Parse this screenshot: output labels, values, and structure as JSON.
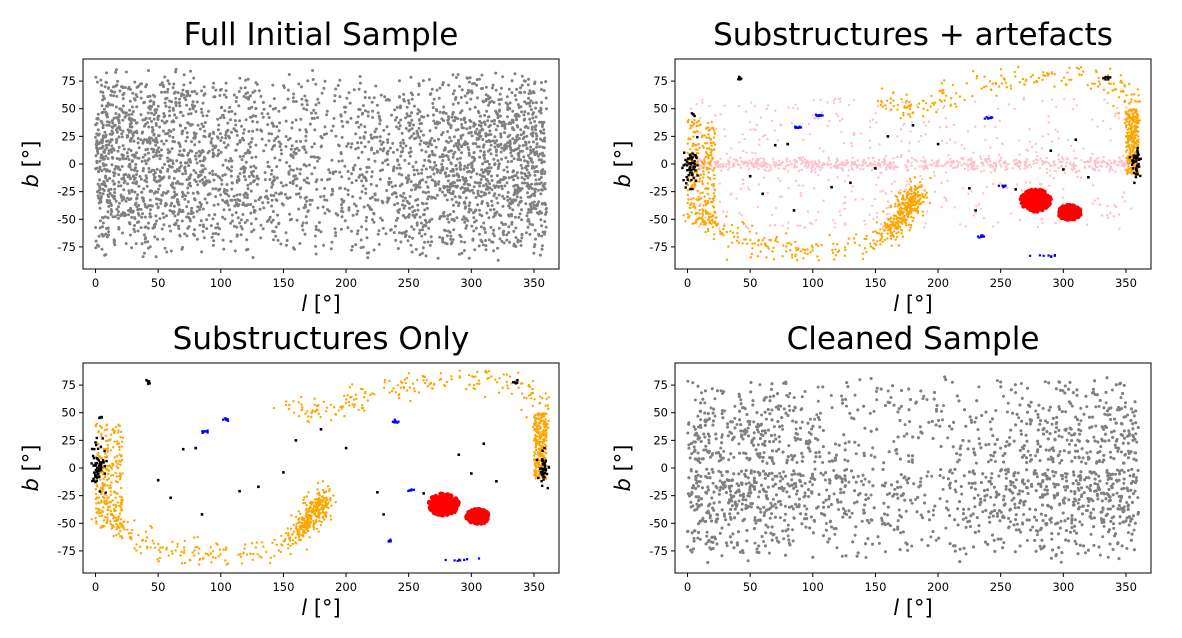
{
  "chart_data": [
    {
      "type": "scatter",
      "title": "Full Initial Sample",
      "xlabel": "l [°]",
      "ylabel": "b [°]",
      "xlim": [
        -10,
        370
      ],
      "ylim": [
        -95,
        95
      ],
      "xticks": [
        0,
        50,
        100,
        150,
        200,
        250,
        300,
        350
      ],
      "yticks": [
        -75,
        -50,
        -25,
        0,
        25,
        50,
        75
      ],
      "grid": false,
      "series": [
        {
          "color": "#808080",
          "points": "all-sky star sample; densest |b|>20 near l<110 and l>240, thinner toward l~150-230; thin underdense lane at b~0",
          "density": "very high"
        }
      ]
    },
    {
      "type": "scatter",
      "title": "Substructures + artefacts",
      "xlabel": "l [°]",
      "ylabel": "b [°]",
      "xlim": [
        -10,
        370
      ],
      "ylim": [
        -95,
        95
      ],
      "xticks": [
        0,
        50,
        100,
        150,
        200,
        250,
        300,
        350
      ],
      "yticks": [
        -75,
        -50,
        -25,
        0,
        25,
        50,
        75
      ],
      "grid": false,
      "series": [
        {
          "color": "#ffc0cb",
          "points": "pink band along b~0 and diffuse scatter"
        },
        {
          "color": "#ffa500",
          "points": "orange stream: l 0-20 (b -50..40), l 20-180 (b ~-60..-80 rising to -25 at l~175), l 150-210 (b 40..65), l 220-350 (b 65..80), l 350-360 (b 0..50)"
        },
        {
          "color": "#000000",
          "points": "black clumps near l~0-10, b~0 and l~355-360, b~0 plus scattered small clumps"
        },
        {
          "color": "#0000ff",
          "points": "small blue clumps at (88,33), (105,44), (240,42), (235,-66), (288,-83)"
        },
        {
          "color": "#ff0000",
          "points": "red blobs centred at l~278, b~-33 and l~305, b~-44"
        }
      ]
    },
    {
      "type": "scatter",
      "title": "Substructures Only",
      "xlabel": "l [°]",
      "ylabel": "b [°]",
      "xlim": [
        -10,
        370
      ],
      "ylim": [
        -95,
        95
      ],
      "xticks": [
        0,
        50,
        100,
        150,
        200,
        250,
        300,
        350
      ],
      "yticks": [
        -75,
        -50,
        -25,
        0,
        25,
        50,
        75
      ],
      "grid": false,
      "series": [
        {
          "color": "#ffa500",
          "points": "orange stream as in panel 2"
        },
        {
          "color": "#000000",
          "points": "black clumps as in panel 2"
        },
        {
          "color": "#0000ff",
          "points": "blue clumps as in panel 2"
        },
        {
          "color": "#ff0000",
          "points": "red blobs at l~278, b~-33 and l~305, b~-44"
        }
      ]
    },
    {
      "type": "scatter",
      "title": "Cleaned Sample",
      "xlabel": "l [°]",
      "ylabel": "b [°]",
      "xlim": [
        -10,
        370
      ],
      "ylim": [
        -95,
        95
      ],
      "xticks": [
        0,
        50,
        100,
        150,
        200,
        250,
        300,
        350
      ],
      "yticks": [
        -75,
        -50,
        -25,
        0,
        25,
        50,
        75
      ],
      "grid": false,
      "series": [
        {
          "color": "#808080",
          "points": "cleaned sample; gap at b~0 (b -1..4) over all l; denser below the plane"
        }
      ]
    }
  ]
}
